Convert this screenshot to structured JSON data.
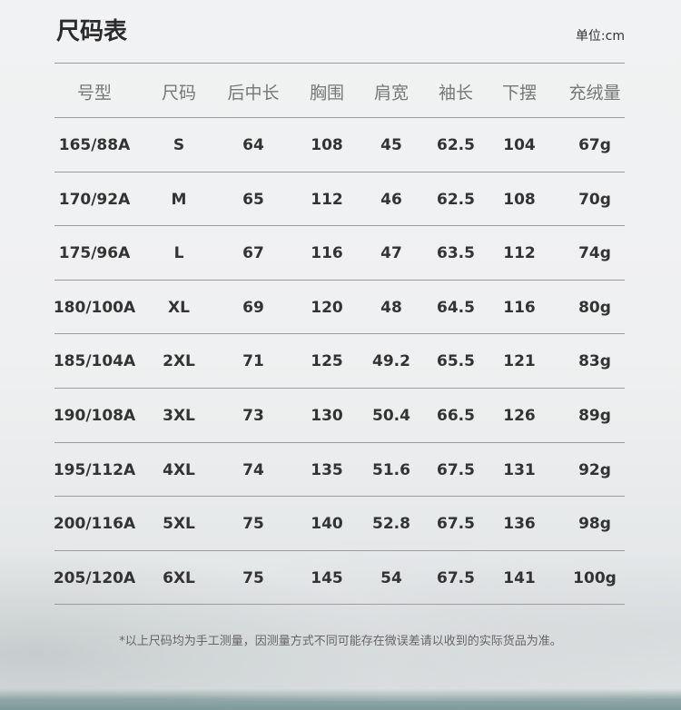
{
  "title": "尺码表",
  "unit": "单位:cm",
  "table": {
    "headers": [
      "号型",
      "尺码",
      "后中长",
      "胸围",
      "肩宽",
      "袖长",
      "下摆",
      "充绒量"
    ],
    "rows": [
      [
        "165/88A",
        "S",
        "64",
        "108",
        "45",
        "62.5",
        "104",
        "67g"
      ],
      [
        "170/92A",
        "M",
        "65",
        "112",
        "46",
        "62.5",
        "108",
        "70g"
      ],
      [
        "175/96A",
        "L",
        "67",
        "116",
        "47",
        "63.5",
        "112",
        "74g"
      ],
      [
        "180/100A",
        "XL",
        "69",
        "120",
        "48",
        "64.5",
        "116",
        "80g"
      ],
      [
        "185/104A",
        "2XL",
        "71",
        "125",
        "49.2",
        "65.5",
        "121",
        "83g"
      ],
      [
        "190/108A",
        "3XL",
        "73",
        "130",
        "50.4",
        "66.5",
        "126",
        "89g"
      ],
      [
        "195/112A",
        "4XL",
        "74",
        "135",
        "51.6",
        "67.5",
        "131",
        "92g"
      ],
      [
        "200/116A",
        "5XL",
        "75",
        "140",
        "52.8",
        "67.5",
        "136",
        "98g"
      ],
      [
        "205/120A",
        "6XL",
        "75",
        "145",
        "54",
        "67.5",
        "141",
        "100g"
      ]
    ]
  },
  "note": "*以上尺码均为手工测量，因测量方式不同可能存在微误差请以收到的实际货品为准。"
}
